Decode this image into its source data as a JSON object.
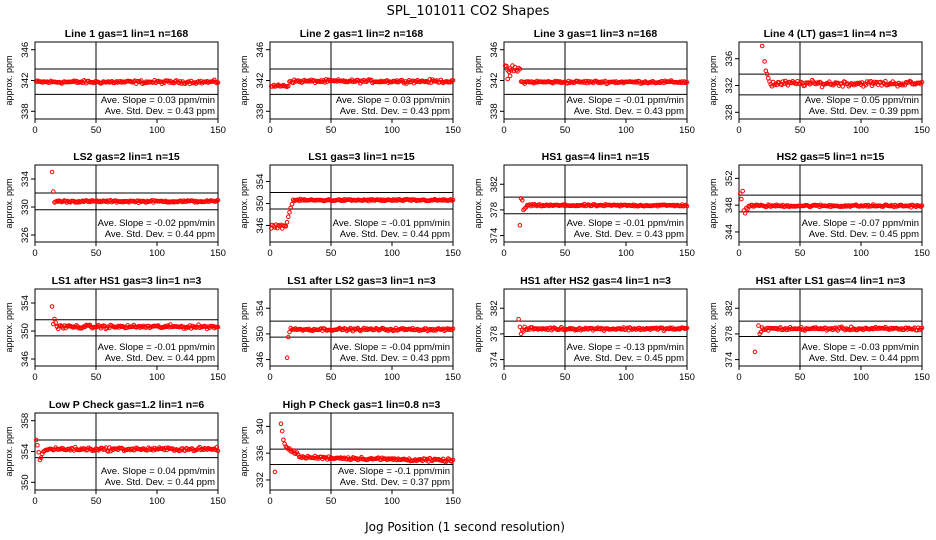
{
  "figure": {
    "title": "SPL_101011  CO2 Shapes",
    "xlabel": "Jog Position (1 second resolution)",
    "point_color": "#ff0000",
    "line_color": "#000000"
  },
  "chart_data": [
    {
      "type": "scatter",
      "title": "Line 1 gas=1 lin=1 n=168",
      "ylabel": "approx. ppm",
      "xlim": [
        0,
        150
      ],
      "ylim": [
        337,
        347
      ],
      "yticks": [
        338,
        342,
        346
      ],
      "xticks": [
        0,
        50,
        100,
        150
      ],
      "hlines": [
        343.5,
        340.2
      ],
      "vline": 50,
      "slope_label": "Ave. Slope =",
      "slope": "0.03",
      "slope_unit": "ppm/min",
      "sd_label": "Ave. Std. Dev. =",
      "sd": "0.43",
      "sd_unit": "ppm",
      "series": [
        {
          "x_start": 1,
          "x_end": 150,
          "mean": 341.8,
          "noise": 0.18
        }
      ]
    },
    {
      "type": "scatter",
      "title": "Line 2 gas=1 lin=2 n=168",
      "ylabel": "approx. ppm",
      "xlim": [
        0,
        150
      ],
      "ylim": [
        337,
        347
      ],
      "yticks": [
        338,
        342,
        346
      ],
      "xticks": [
        0,
        50,
        100,
        150
      ],
      "hlines": [
        343.5,
        340.2
      ],
      "vline": 50,
      "slope_label": "Ave. Slope =",
      "slope": "0.03",
      "slope_unit": "ppm/min",
      "sd_label": "Ave. Std. Dev. =",
      "sd": "0.43",
      "sd_unit": "ppm",
      "series": [
        {
          "x_start": 1,
          "x_end": 15,
          "mean": 341.3,
          "noise": 0.15
        },
        {
          "x_start": 16,
          "x_end": 150,
          "mean": 341.9,
          "noise": 0.18
        }
      ]
    },
    {
      "type": "scatter",
      "title": "Line 3 gas=1 lin=3 n=168",
      "ylabel": "approx. ppm",
      "xlim": [
        0,
        150
      ],
      "ylim": [
        337,
        347
      ],
      "yticks": [
        338,
        342,
        346
      ],
      "xticks": [
        0,
        50,
        100,
        150
      ],
      "hlines": [
        343.5,
        340.2
      ],
      "vline": 50,
      "slope_label": "Ave. Slope =",
      "slope": "-0.01",
      "slope_unit": "ppm/min",
      "sd_label": "Ave. Std. Dev. =",
      "sd": "0.43",
      "sd_unit": "ppm",
      "series": [
        {
          "x_start": 1,
          "x_end": 13,
          "mean": 343.4,
          "noise": 0.45
        },
        {
          "x_start": 14,
          "x_end": 150,
          "mean": 341.8,
          "noise": 0.15
        }
      ],
      "outliers": [
        [
          3,
          342.2
        ],
        [
          5,
          342.6
        ]
      ]
    },
    {
      "type": "scatter",
      "title": "Line 4 (LT) gas=1 lin=4 n=3",
      "ylabel": "approx. ppm",
      "xlim": [
        0,
        150
      ],
      "ylim": [
        327,
        338.5
      ],
      "yticks": [
        328,
        332,
        336
      ],
      "xticks": [
        0,
        50,
        100,
        150
      ],
      "hlines": [
        333.7,
        330.6
      ],
      "vline": 50,
      "slope_label": "Ave. Slope =",
      "slope": "0.05",
      "slope_unit": "ppm/min",
      "sd_label": "Ave. Std. Dev. =",
      "sd": "0.39",
      "sd_unit": "ppm",
      "series": [
        {
          "x_start": 28,
          "x_end": 150,
          "mean": 332.3,
          "noise": 0.35
        }
      ],
      "outliers": [
        [
          19,
          337.9
        ],
        [
          21,
          335.6
        ],
        [
          22,
          334.2
        ],
        [
          23,
          333.7
        ],
        [
          24,
          333.1
        ],
        [
          25,
          332.6
        ],
        [
          26,
          332.2
        ],
        [
          27,
          331.9
        ]
      ]
    },
    {
      "type": "scatter",
      "title": "LS2 gas=2 lin=1 n=15",
      "ylabel": "approx. ppm",
      "xlim": [
        0,
        150
      ],
      "ylim": [
        325,
        336
      ],
      "yticks": [
        326,
        330,
        334
      ],
      "xticks": [
        0,
        50,
        100,
        150
      ],
      "hlines": [
        332.0,
        329.6
      ],
      "vline": 50,
      "slope_label": "Ave. Slope =",
      "slope": "-0.02",
      "slope_unit": "ppm/min",
      "sd_label": "Ave. Std. Dev. =",
      "sd": "0.44",
      "sd_unit": "ppm",
      "series": [
        {
          "x_start": 16,
          "x_end": 150,
          "mean": 330.8,
          "noise": 0.13
        }
      ],
      "outliers": [
        [
          14,
          335.0
        ],
        [
          15,
          332.2
        ]
      ]
    },
    {
      "type": "scatter",
      "title": "LS1 gas=3 lin=1 n=15",
      "ylabel": "approx. ppm",
      "xlim": [
        0,
        150
      ],
      "ylim": [
        343,
        357
      ],
      "yticks": [
        346,
        350,
        354
      ],
      "xticks": [
        0,
        50,
        100,
        150
      ],
      "hlines": [
        352.0,
        349.0
      ],
      "vline": 50,
      "slope_label": "Ave. Slope =",
      "slope": "-0.01",
      "slope_unit": "ppm/min",
      "sd_label": "Ave. Std. Dev. =",
      "sd": "0.44",
      "sd_unit": "ppm",
      "series": [
        {
          "x_start": 1,
          "x_end": 13,
          "mean": 345.9,
          "noise": 0.3
        },
        {
          "x_start": 19,
          "x_end": 150,
          "mean": 350.6,
          "noise": 0.15
        }
      ],
      "outliers": [
        [
          14,
          346.6
        ],
        [
          15,
          347.6
        ],
        [
          16,
          348.4
        ],
        [
          17,
          349.2
        ],
        [
          18,
          349.9
        ]
      ]
    },
    {
      "type": "scatter",
      "title": "HS1 gas=4 lin=1 n=15",
      "ylabel": "approx. ppm",
      "xlim": [
        0,
        150
      ],
      "ylim": [
        373,
        385
      ],
      "yticks": [
        374,
        378,
        382
      ],
      "xticks": [
        0,
        50,
        100,
        150
      ],
      "hlines": [
        380.0,
        377.4
      ],
      "vline": 50,
      "slope_label": "Ave. Slope =",
      "slope": "-0.01",
      "slope_unit": "ppm/min",
      "sd_label": "Ave. Std. Dev. =",
      "sd": "0.43",
      "sd_unit": "ppm",
      "series": [
        {
          "x_start": 19,
          "x_end": 150,
          "mean": 378.7,
          "noise": 0.13
        }
      ],
      "outliers": [
        [
          13,
          375.6
        ],
        [
          14,
          379.8
        ],
        [
          15,
          379.5
        ],
        [
          16,
          378.0
        ],
        [
          17,
          378.2
        ],
        [
          18,
          378.4
        ]
      ]
    },
    {
      "type": "scatter",
      "title": "HS2 gas=5 lin=1 n=15",
      "ylabel": "approx. ppm",
      "xlim": [
        0,
        150
      ],
      "ylim": [
        342.5,
        354
      ],
      "yticks": [
        344,
        348,
        352
      ],
      "xticks": [
        0,
        50,
        100,
        150
      ],
      "hlines": [
        349.5,
        347.0
      ],
      "vline": 50,
      "slope_label": "Ave. Slope =",
      "slope": "-0.07",
      "slope_unit": "ppm/min",
      "sd_label": "Ave. Std. Dev. =",
      "sd": "0.45",
      "sd_unit": "ppm",
      "series": [
        {
          "x_start": 8,
          "x_end": 150,
          "mean": 347.9,
          "noise": 0.15
        }
      ],
      "outliers": [
        [
          1,
          349.7
        ],
        [
          2,
          348.9
        ],
        [
          3,
          350.1
        ],
        [
          4,
          347.2
        ],
        [
          5,
          346.8
        ],
        [
          6,
          347.6
        ],
        [
          7,
          347.4
        ]
      ]
    },
    {
      "type": "scatter",
      "title": "LS1 after HS1 gas=3 lin=1 n=3",
      "ylabel": "approx. ppm",
      "xlim": [
        0,
        150
      ],
      "ylim": [
        345,
        356
      ],
      "yticks": [
        346,
        350,
        354
      ],
      "xticks": [
        0,
        50,
        100,
        150
      ],
      "hlines": [
        351.6,
        349.3
      ],
      "vline": 50,
      "slope_label": "Ave. Slope =",
      "slope": "-0.01",
      "slope_unit": "ppm/min",
      "sd_label": "Ave. Std. Dev. =",
      "sd": "0.44",
      "sd_unit": "ppm",
      "series": [
        {
          "x_start": 20,
          "x_end": 150,
          "mean": 350.6,
          "noise": 0.22
        }
      ],
      "outliers": [
        [
          14,
          353.5
        ],
        [
          15,
          351.0
        ],
        [
          16,
          351.7
        ],
        [
          17,
          351.2
        ],
        [
          18,
          350.6
        ],
        [
          19,
          350.3
        ]
      ]
    },
    {
      "type": "scatter",
      "title": "LS1 after LS2 gas=3 lin=1 n=3",
      "ylabel": "approx. ppm",
      "xlim": [
        0,
        150
      ],
      "ylim": [
        345,
        357
      ],
      "yticks": [
        346,
        350,
        354
      ],
      "xticks": [
        0,
        50,
        100,
        150
      ],
      "hlines": [
        352.0,
        349.5
      ],
      "vline": 50,
      "slope_label": "Ave. Slope =",
      "slope": "-0.04",
      "slope_unit": "ppm/min",
      "sd_label": "Ave. Std. Dev. =",
      "sd": "0.43",
      "sd_unit": "ppm",
      "series": [
        {
          "x_start": 18,
          "x_end": 150,
          "mean": 350.7,
          "noise": 0.18
        }
      ],
      "outliers": [
        [
          14,
          346.3
        ],
        [
          15,
          349.5
        ],
        [
          16,
          350.3
        ],
        [
          17,
          350.9
        ]
      ]
    },
    {
      "type": "scatter",
      "title": "HS1 after HS2 gas=4 lin=1 n=3",
      "ylabel": "approx. ppm",
      "xlim": [
        0,
        150
      ],
      "ylim": [
        373,
        385
      ],
      "yticks": [
        374,
        378,
        382
      ],
      "xticks": [
        0,
        50,
        100,
        150
      ],
      "hlines": [
        380.0,
        377.6
      ],
      "vline": 50,
      "slope_label": "Ave. Slope =",
      "slope": "-0.13",
      "slope_unit": "ppm/min",
      "sd_label": "Ave. Std. Dev. =",
      "sd": "0.45",
      "sd_unit": "ppm",
      "series": [
        {
          "x_start": 17,
          "x_end": 150,
          "mean": 378.8,
          "noise": 0.2
        }
      ],
      "outliers": [
        [
          12,
          380.3
        ],
        [
          13,
          379.1
        ],
        [
          14,
          378.0
        ],
        [
          15,
          378.6
        ],
        [
          16,
          378.4
        ]
      ]
    },
    {
      "type": "scatter",
      "title": "HS1 after LS1 gas=4 lin=1 n=3",
      "ylabel": "approx. ppm",
      "xlim": [
        0,
        150
      ],
      "ylim": [
        373,
        385
      ],
      "yticks": [
        374,
        378,
        382
      ],
      "xticks": [
        0,
        50,
        100,
        150
      ],
      "hlines": [
        380.0,
        377.6
      ],
      "vline": 50,
      "slope_label": "Ave. Slope =",
      "slope": "-0.03",
      "slope_unit": "ppm/min",
      "sd_label": "Ave. Std. Dev. =",
      "sd": "0.44",
      "sd_unit": "ppm",
      "series": [
        {
          "x_start": 20,
          "x_end": 150,
          "mean": 378.8,
          "noise": 0.22
        }
      ],
      "outliers": [
        [
          13,
          375.2
        ],
        [
          16,
          379.3
        ],
        [
          17,
          378.0
        ],
        [
          18,
          378.3
        ],
        [
          19,
          379.0
        ]
      ]
    },
    {
      "type": "scatter",
      "title": "Low P Check gas=1.2 lin=1 n=6",
      "ylabel": "approx. ppm",
      "xlim": [
        0,
        150
      ],
      "ylim": [
        349,
        359
      ],
      "yticks": [
        350,
        354,
        358
      ],
      "xticks": [
        0,
        50,
        100,
        150
      ],
      "hlines": [
        355.5,
        353.2
      ],
      "vline": 50,
      "slope_label": "Ave. Slope =",
      "slope": "0.04",
      "slope_unit": "ppm/min",
      "sd_label": "Ave. Std. Dev. =",
      "sd": "0.44",
      "sd_unit": "ppm",
      "series": [
        {
          "x_start": 9,
          "x_end": 150,
          "mean": 354.3,
          "noise": 0.2
        }
      ],
      "outliers": [
        [
          1,
          355.5
        ],
        [
          2,
          354.8
        ],
        [
          3,
          353.9
        ],
        [
          4,
          352.9
        ],
        [
          5,
          353.2
        ],
        [
          6,
          353.7
        ],
        [
          7,
          354.0
        ],
        [
          8,
          354.1
        ]
      ]
    },
    {
      "type": "scatter",
      "title": "High P Check gas=1 lin=0.8 n=3",
      "ylabel": "approx. ppm",
      "xlim": [
        0,
        150
      ],
      "ylim": [
        330.5,
        342
      ],
      "yticks": [
        332,
        336,
        340
      ],
      "xticks": [
        0,
        50,
        100,
        150
      ],
      "hlines": [
        336.6,
        334.3
      ],
      "vline": 50,
      "slope_label": "Ave. Slope =",
      "slope": "-0.1",
      "slope_unit": "ppm/min",
      "sd_label": "Ave. Std. Dev. =",
      "sd": "0.37",
      "sd_unit": "ppm",
      "series": [
        {
          "x_start": 24,
          "x_end": 150,
          "mean": 335.4,
          "noise": 0.2,
          "drift": -0.5
        }
      ],
      "outliers": [
        [
          4,
          333.2
        ],
        [
          9,
          340.4
        ],
        [
          10,
          339.3
        ],
        [
          11,
          338.0
        ],
        [
          12,
          337.4
        ],
        [
          13,
          337.0
        ],
        [
          14,
          336.8
        ],
        [
          15,
          336.6
        ],
        [
          16,
          336.7
        ],
        [
          17,
          336.3
        ],
        [
          18,
          336.2
        ],
        [
          19,
          336.4
        ],
        [
          20,
          336.0
        ],
        [
          21,
          335.9
        ],
        [
          22,
          336.1
        ],
        [
          23,
          335.8
        ]
      ]
    }
  ]
}
